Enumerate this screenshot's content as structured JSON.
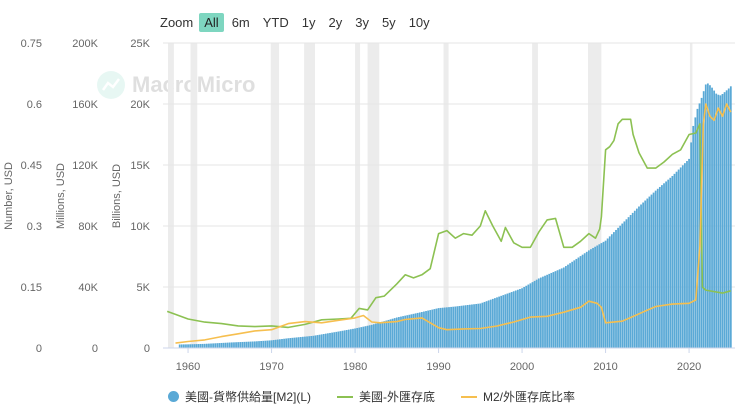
{
  "zoom": {
    "label": "Zoom",
    "buttons": [
      "All",
      "6m",
      "YTD",
      "1y",
      "2y",
      "3y",
      "5y",
      "10y"
    ],
    "active": "All"
  },
  "watermark": {
    "text": "MacroMicro"
  },
  "colors": {
    "m2": "#5aa9d6",
    "reserves": "#8cc152",
    "ratio": "#f6bf4f",
    "recession": "#ececec"
  },
  "legend": [
    {
      "label": "美國-貨幣供給量[M2](L)",
      "marker": "dot",
      "color": "#5aa9d6"
    },
    {
      "label": "美國-外匯存底",
      "marker": "line",
      "color": "#8cc152"
    },
    {
      "label": "M2/外匯存底比率",
      "marker": "line",
      "color": "#f6bf4f"
    }
  ],
  "chart_data": {
    "type": "bar",
    "x_ticks": [
      "1960",
      "1970",
      "1980",
      "1990",
      "2000",
      "2010",
      "2020"
    ],
    "xlim": [
      1957,
      2025.5
    ],
    "axes": [
      {
        "title": "Number, USD",
        "ticks": [
          "0",
          "0.15",
          "0.3",
          "0.45",
          "0.6",
          "0.75"
        ],
        "ylim": [
          0,
          0.75
        ]
      },
      {
        "title": "Millions, USD",
        "ticks": [
          "0",
          "40K",
          "80K",
          "120K",
          "160K",
          "200K"
        ],
        "ylim": [
          0,
          200000
        ]
      },
      {
        "title": "Billions, USD",
        "ticks": [
          "0",
          "5K",
          "10K",
          "15K",
          "20K",
          "25K"
        ],
        "ylim": [
          0,
          25000
        ]
      }
    ],
    "recessions": [
      [
        1957.6,
        1958.3
      ],
      [
        1960.3,
        1961.1
      ],
      [
        1969.9,
        1970.9
      ],
      [
        1973.9,
        1975.2
      ],
      [
        1980.0,
        1980.6
      ],
      [
        1981.5,
        1982.9
      ],
      [
        1990.6,
        1991.2
      ],
      [
        2001.2,
        2001.9
      ],
      [
        2007.9,
        2009.5
      ],
      [
        2020.1,
        2020.4
      ]
    ],
    "series": [
      {
        "name": "美國-貨幣供給量[M2](L)",
        "type": "bar",
        "axis": 2,
        "x": [
          1959,
          1960,
          1962,
          1965,
          1968,
          1970,
          1972,
          1975,
          1978,
          1980,
          1982,
          1985,
          1988,
          1990,
          1992,
          1995,
          1998,
          2000,
          2002,
          2005,
          2008,
          2010,
          2012,
          2014,
          2016,
          2018,
          2020,
          2020.5,
          2021,
          2021.5,
          2022,
          2022.3,
          2022.8,
          2023.3,
          2023.8,
          2024.3,
          2024.8,
          2025.2
        ],
        "y": [
          290,
          300,
          340,
          450,
          540,
          630,
          800,
          1000,
          1350,
          1600,
          1900,
          2500,
          2950,
          3270,
          3400,
          3650,
          4400,
          4900,
          5700,
          6600,
          8000,
          8800,
          10200,
          11600,
          12900,
          14100,
          15500,
          18200,
          19600,
          20500,
          21600,
          21700,
          21300,
          20800,
          20700,
          21000,
          21300,
          21600
        ]
      },
      {
        "name": "美國-外匯存底",
        "type": "line",
        "axis": 1,
        "x": [
          1957.5,
          1958.5,
          1960,
          1962,
          1964,
          1966,
          1968,
          1970,
          1972,
          1974,
          1976,
          1978,
          1979.5,
          1980.5,
          1981.5,
          1982.5,
          1983.5,
          1985,
          1986,
          1987,
          1988,
          1989,
          1990,
          1991,
          1992,
          1993,
          1994,
          1995,
          1995.6,
          1996.5,
          1997.5,
          1998,
          1999,
          2000,
          2001,
          2002,
          2003,
          2004,
          2005,
          2006,
          2007,
          2008,
          2008.8,
          2009.3,
          2009.5,
          2010,
          2010.5,
          2011,
          2011.5,
          2012,
          2013,
          2013.3,
          2014,
          2015,
          2016,
          2017,
          2018,
          2019,
          2020,
          2020.8,
          2021.3,
          2021.6,
          2022,
          2023,
          2024,
          2025
        ],
        "y": [
          24000,
          22000,
          19000,
          17000,
          16000,
          14500,
          14000,
          14500,
          13500,
          15500,
          18500,
          19000,
          19500,
          26000,
          25000,
          33000,
          34000,
          42000,
          48000,
          46000,
          48000,
          52000,
          75000,
          77000,
          72000,
          75000,
          74000,
          80000,
          90000,
          80000,
          70000,
          79000,
          69000,
          66000,
          66000,
          76000,
          84000,
          85000,
          66000,
          66000,
          70000,
          75000,
          72000,
          78000,
          86000,
          130000,
          132000,
          136000,
          147000,
          150000,
          150000,
          140000,
          128000,
          118000,
          118000,
          122000,
          127000,
          130000,
          140000,
          141000,
          147000,
          40000,
          38000,
          37000,
          36000,
          37500
        ]
      },
      {
        "name": "M2/外匯存底比率",
        "type": "line",
        "axis": 0,
        "x": [
          1958.5,
          1960,
          1962,
          1964,
          1966,
          1968,
          1970,
          1972,
          1974,
          1976,
          1978,
          1980,
          1981,
          1982,
          1983,
          1985,
          1986,
          1988,
          1990,
          1991,
          1993,
          1995,
          1997,
          1999,
          2001,
          2003,
          2005,
          2007,
          2008,
          2009,
          2009.5,
          2010,
          2012,
          2014,
          2016,
          2018,
          2020,
          2020.8,
          2021.3,
          2021.7,
          2022,
          2022.5,
          2023,
          2023.5,
          2024,
          2024.5,
          2025
        ],
        "y": [
          0.012,
          0.016,
          0.02,
          0.028,
          0.035,
          0.042,
          0.045,
          0.06,
          0.065,
          0.062,
          0.068,
          0.074,
          0.08,
          0.064,
          0.062,
          0.065,
          0.07,
          0.074,
          0.05,
          0.045,
          0.047,
          0.048,
          0.054,
          0.064,
          0.076,
          0.078,
          0.088,
          0.1,
          0.115,
          0.11,
          0.1,
          0.062,
          0.066,
          0.084,
          0.102,
          0.108,
          0.11,
          0.118,
          0.25,
          0.55,
          0.6,
          0.57,
          0.56,
          0.59,
          0.57,
          0.6,
          0.58
        ]
      }
    ]
  }
}
